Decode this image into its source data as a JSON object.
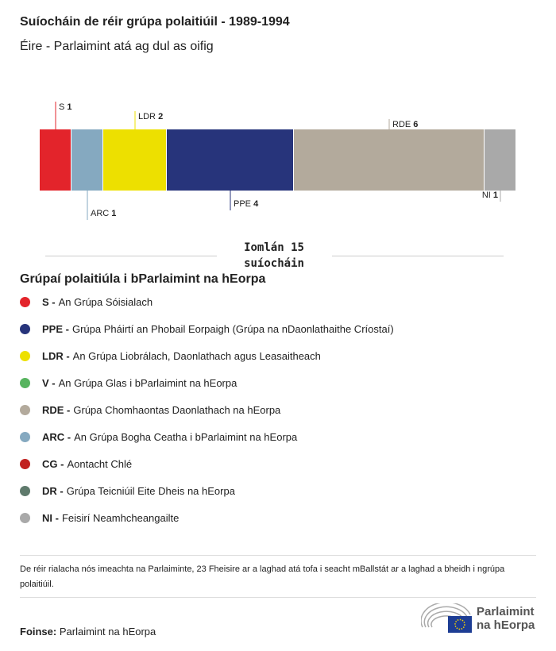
{
  "title": "Suíocháin de réir grúpa polaitiúil - 1989-1994",
  "subtitle": "Éire - Parlaimint atá ag dul as oifig",
  "chart_data": {
    "type": "bar",
    "orientation": "stacked-horizontal",
    "categories": [
      "S",
      "ARC",
      "LDR",
      "PPE",
      "RDE",
      "NI"
    ],
    "values": [
      1,
      1,
      2,
      4,
      6,
      1
    ],
    "colors": [
      "#e3242b",
      "#85a9c0",
      "#ede000",
      "#27347b",
      "#b3aa9c",
      "#a9a9a9"
    ],
    "total_label": "Iomlán 15 suíocháin"
  },
  "legend": {
    "title": "Grúpaí polaitiúla i bParlaimint na hEorpa",
    "items": [
      {
        "abbr": "S -",
        "name": "An Grúpa Sóisialach",
        "color": "#e3242b"
      },
      {
        "abbr": "PPE -",
        "name": "Grúpa Pháirtí an Phobail Eorpaigh (Grúpa na nDaonlathaithe Críostaí)",
        "color": "#27347b"
      },
      {
        "abbr": "LDR -",
        "name": "An Grúpa Liobrálach, Daonlathach agus Leasaitheach",
        "color": "#ede000"
      },
      {
        "abbr": "V -",
        "name": "An Grúpa Glas i bParlaimint na hEorpa",
        "color": "#57b45f"
      },
      {
        "abbr": "RDE -",
        "name": "Grúpa Chomhaontas Daonlathach na hEorpa",
        "color": "#b3aa9c"
      },
      {
        "abbr": "ARC -",
        "name": "An Grúpa Bogha Ceatha i bParlaimint na hEorpa",
        "color": "#85a9c0"
      },
      {
        "abbr": "CG -",
        "name": "Aontacht Chlé",
        "color": "#c1211f"
      },
      {
        "abbr": "DR -",
        "name": "Grúpa Teicniúil Eite Dheis na hEorpa",
        "color": "#5f7a6c"
      },
      {
        "abbr": "NI -",
        "name": "Feisirí Neamhcheangailte",
        "color": "#a9a9a9"
      }
    ]
  },
  "note": "De réir rialacha nós imeachta na Parlaiminte, 23 Fheisire ar a laghad atá tofa i seacht mBallstát ar a laghad a bheidh i ngrúpa polaitiúil.",
  "source": {
    "label": "Foinse:",
    "value": "Parlaimint na hEorpa"
  },
  "logo": {
    "line1": "Parlaimint",
    "line2": "na hEorpa"
  }
}
